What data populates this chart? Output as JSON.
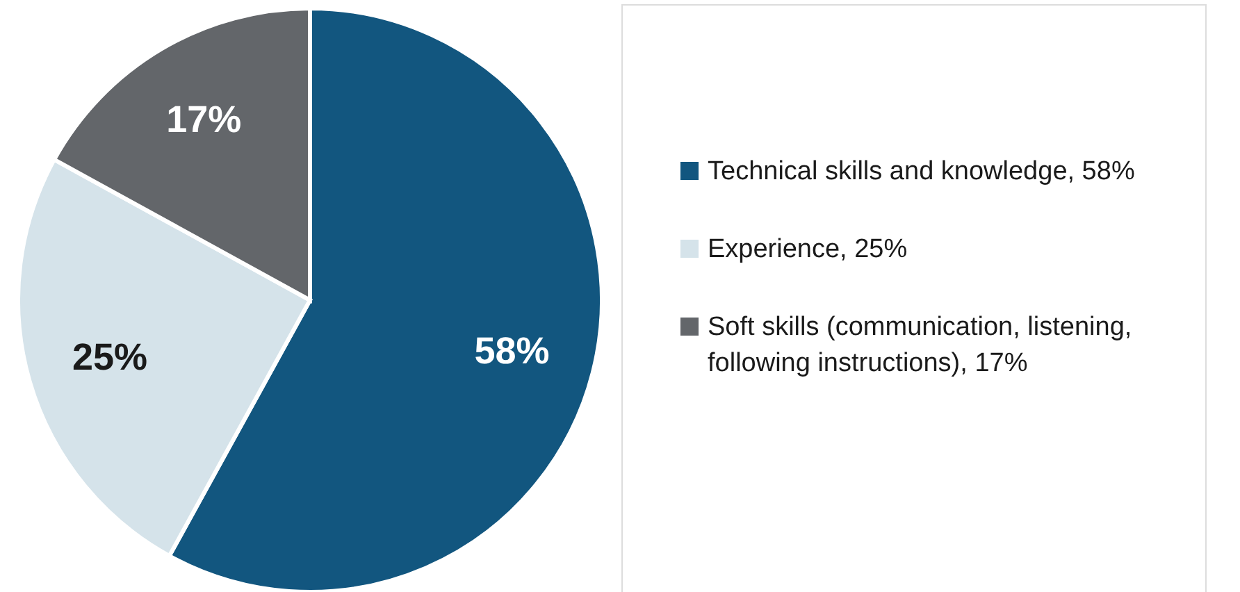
{
  "chart_data": {
    "type": "pie",
    "categories": [
      "Technical skills and knowledge, 58%",
      "Experience, 25%",
      "Soft skills (communication, listening, following instructions), 17%"
    ],
    "values": [
      58,
      25,
      17
    ],
    "value_labels": [
      "58%",
      "25%",
      "17%"
    ],
    "colors": [
      "#12567f",
      "#d5e3ea",
      "#63666a"
    ],
    "legend": "right"
  }
}
